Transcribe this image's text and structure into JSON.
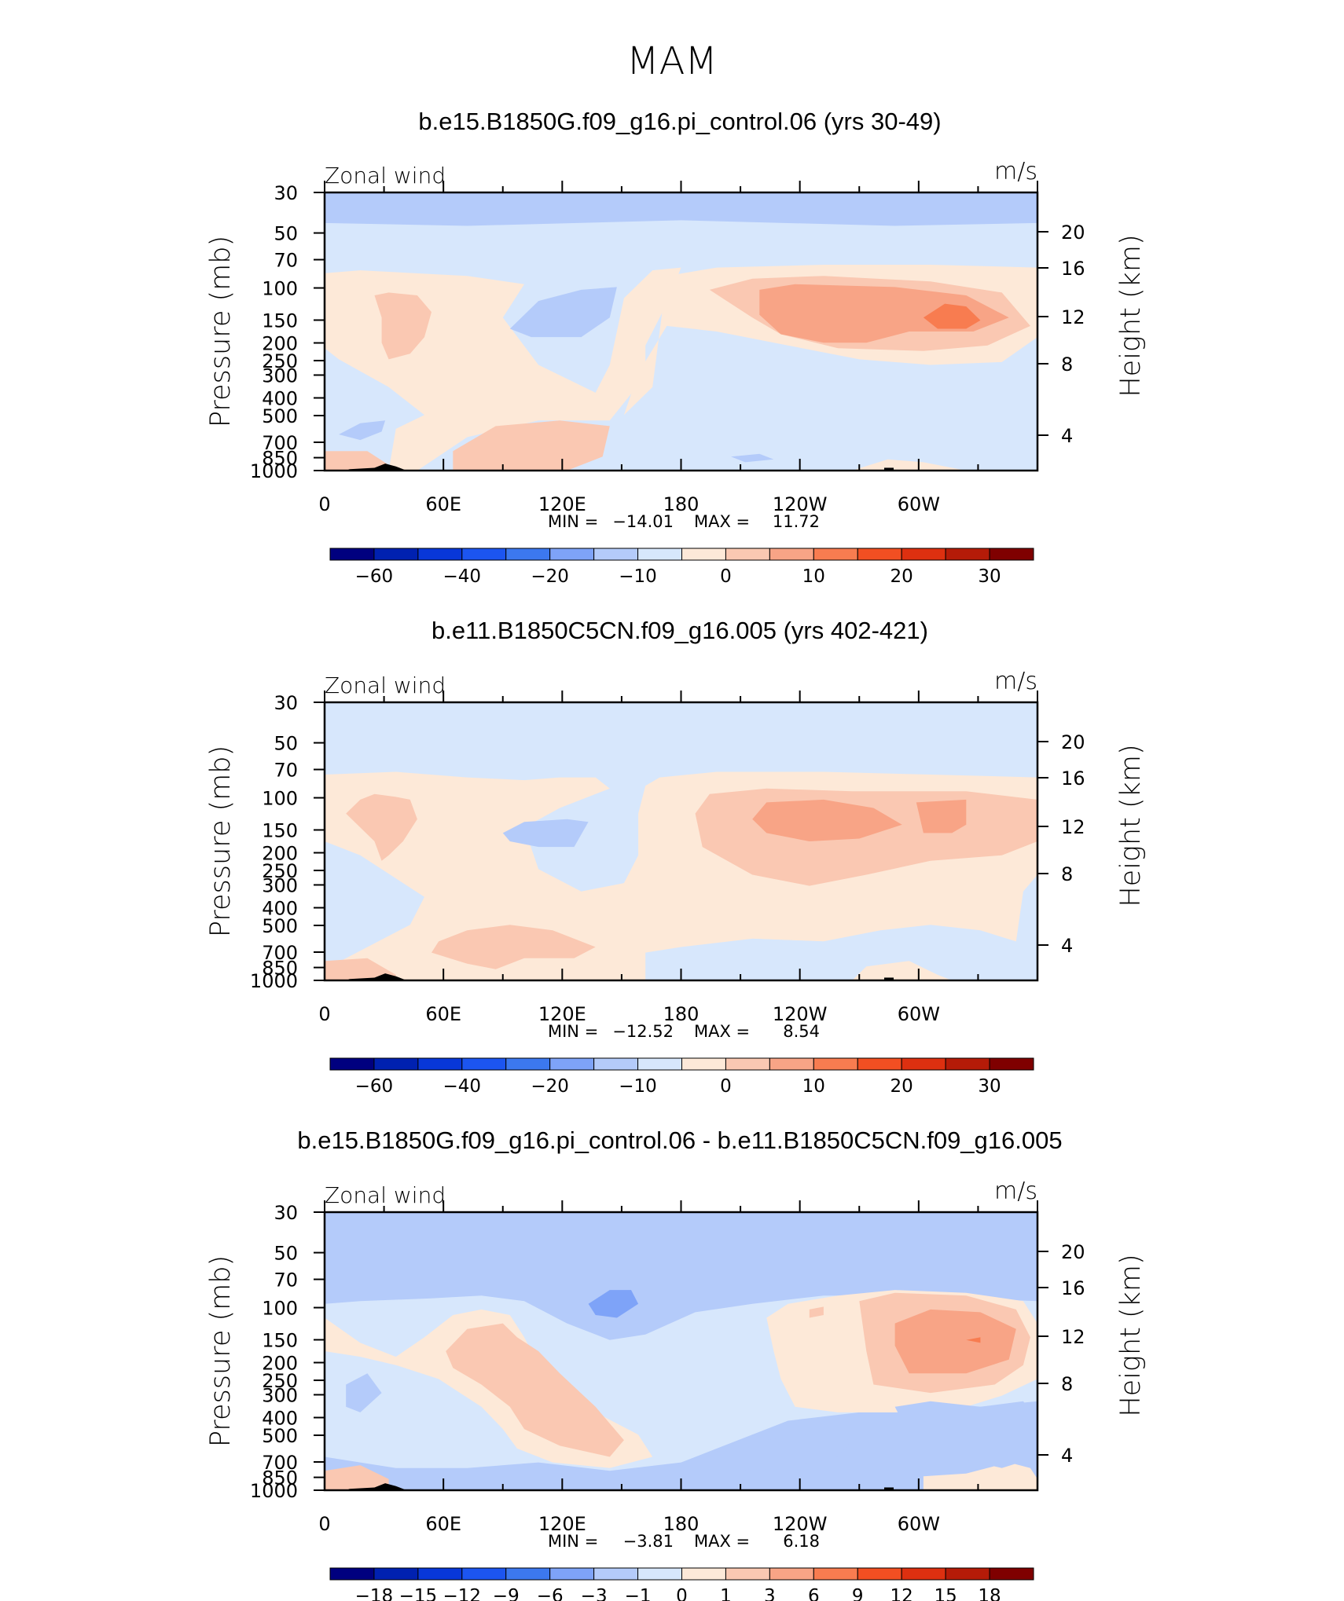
{
  "page_title": "MAM",
  "colors": {
    "c_n20": "#b4cbfa",
    "c_n10": "#d7e7fc",
    "c_p0": "#fde9d8",
    "c_p5": "#fac8b2",
    "c_p10": "#f8a486",
    "c_p15": "#f87c50",
    "d_n3": "#b4cbfa",
    "d_n1": "#d7e7fc",
    "d_p1": "#fde9d8",
    "d_p3": "#fac8b2",
    "d_p6": "#f8a486",
    "d_n6": "#7ea3f8",
    "d_p9": "#f87c50"
  },
  "chart_data": [
    {
      "type": "heatmap",
      "title": "b.e15.B1850G.f09_g16.pi_control.06 (yrs 30-49)",
      "subtitle": "Zonal wind",
      "units": "m/s",
      "ylabel": "Pressure (mb)",
      "y2label": "Height (km)",
      "x_ticks": [
        "0",
        "60E",
        "120E",
        "180",
        "120W",
        "60W"
      ],
      "y_ticks": [
        "30",
        "50",
        "70",
        "100",
        "150",
        "200",
        "250",
        "300",
        "400",
        "500",
        "700",
        "850",
        "1000"
      ],
      "y2_ticks": [
        "20",
        "16",
        "12",
        "8",
        "4"
      ],
      "min_label": "MIN =",
      "min_value": "−14.01",
      "max_label": "MAX =",
      "max_value": "11.72",
      "colorbar_ticks": [
        "−60",
        "−40",
        "−20",
        "−10",
        "0",
        "10",
        "20",
        "30"
      ]
    },
    {
      "type": "heatmap",
      "title": "b.e11.B1850C5CN.f09_g16.005 (yrs 402-421)",
      "subtitle": "Zonal wind",
      "units": "m/s",
      "ylabel": "Pressure (mb)",
      "y2label": "Height (km)",
      "x_ticks": [
        "0",
        "60E",
        "120E",
        "180",
        "120W",
        "60W"
      ],
      "y_ticks": [
        "30",
        "50",
        "70",
        "100",
        "150",
        "200",
        "250",
        "300",
        "400",
        "500",
        "700",
        "850",
        "1000"
      ],
      "y2_ticks": [
        "20",
        "16",
        "12",
        "8",
        "4"
      ],
      "min_label": "MIN =",
      "min_value": "−12.52",
      "max_label": "MAX =",
      "max_value": "8.54",
      "colorbar_ticks": [
        "−60",
        "−40",
        "−20",
        "−10",
        "0",
        "10",
        "20",
        "30"
      ]
    },
    {
      "type": "heatmap",
      "title": "b.e15.B1850G.f09_g16.pi_control.06 - b.e11.B1850C5CN.f09_g16.005",
      "subtitle": "Zonal wind",
      "units": "m/s",
      "ylabel": "Pressure (mb)",
      "y2label": "Height (km)",
      "x_ticks": [
        "0",
        "60E",
        "120E",
        "180",
        "120W",
        "60W"
      ],
      "y_ticks": [
        "30",
        "50",
        "70",
        "100",
        "150",
        "200",
        "250",
        "300",
        "400",
        "500",
        "700",
        "850",
        "1000"
      ],
      "y2_ticks": [
        "20",
        "16",
        "12",
        "8",
        "4"
      ],
      "min_label": "MIN =",
      "min_value": "−3.81",
      "max_label": "MAX =",
      "max_value": "6.18",
      "colorbar_ticks": [
        "−18",
        "−15",
        "−12",
        "−9",
        "−6",
        "−3",
        "−1",
        "0",
        "1",
        "3",
        "6",
        "9",
        "12",
        "15",
        "18"
      ]
    }
  ]
}
